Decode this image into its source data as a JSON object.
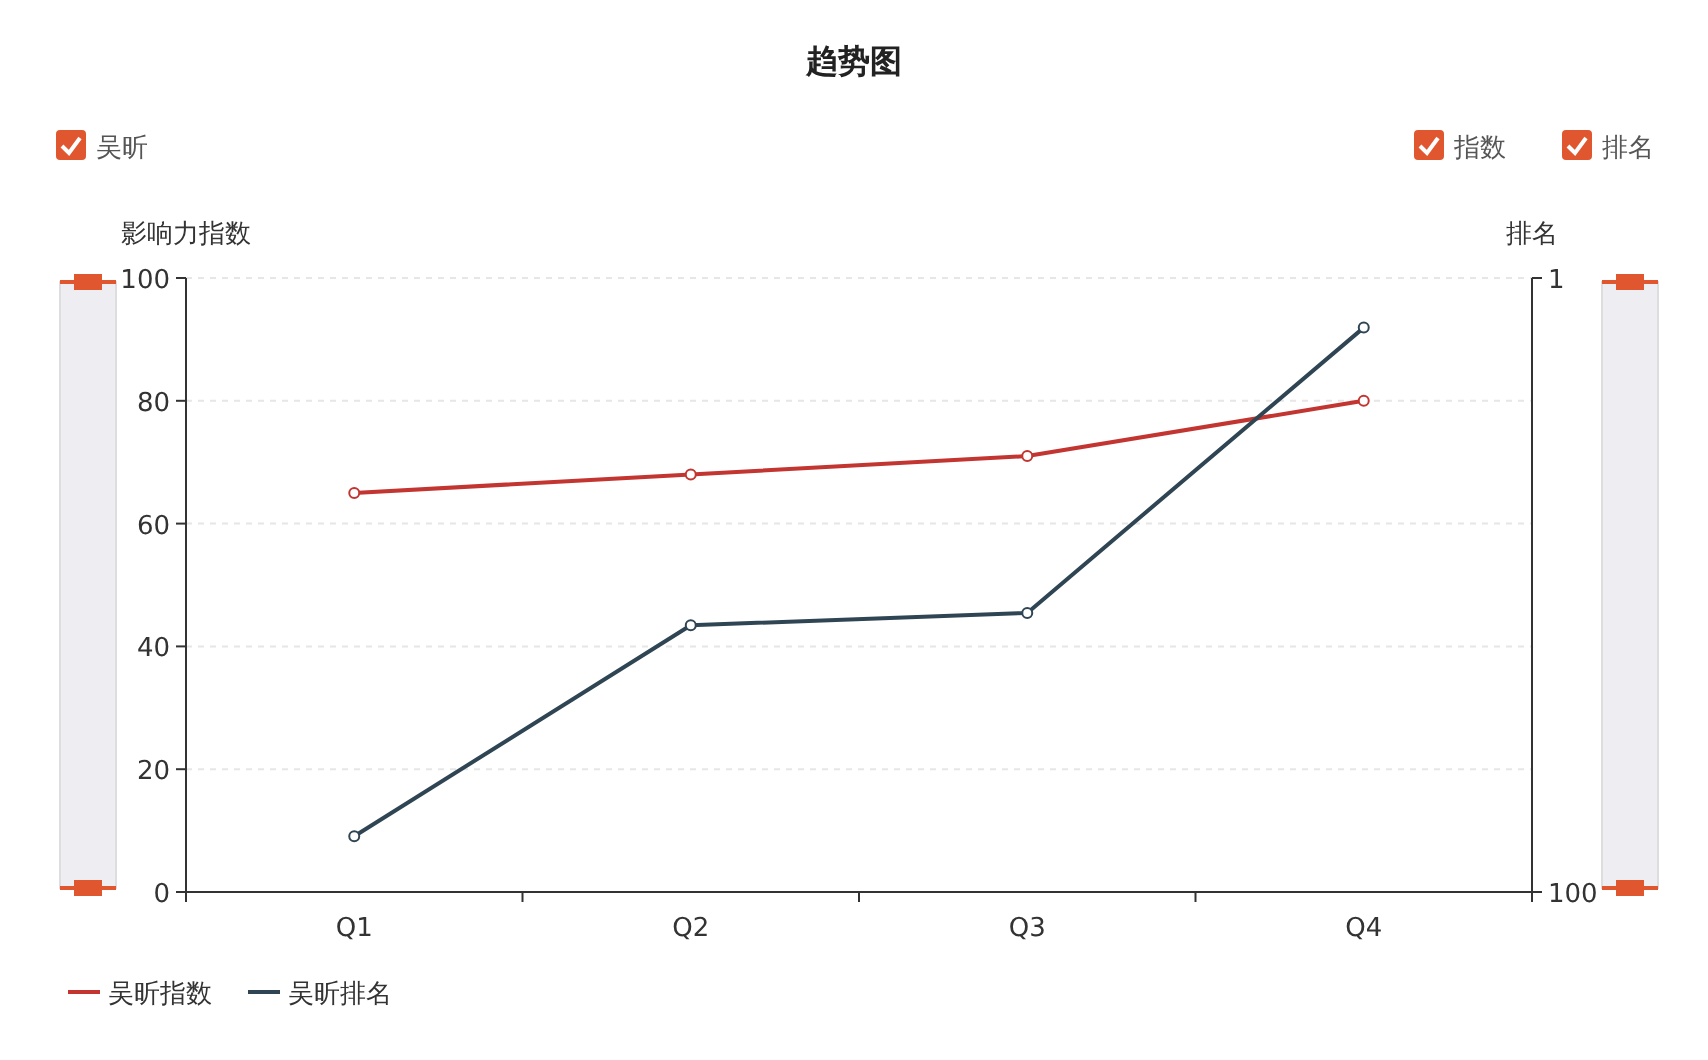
{
  "chart_data": {
    "type": "line",
    "title": "趋势图",
    "ylabel": "影响力指数",
    "y2label": "排名",
    "categories": [
      "Q1",
      "Q2",
      "Q3",
      "Q4"
    ],
    "series": [
      {
        "name": "吴昕指数",
        "color": "#c23531",
        "values": [
          65,
          68,
          71,
          80
        ]
      },
      {
        "name": "吴昕排名",
        "color": "#2f4554",
        "values": [
          91,
          57,
          55,
          9
        ],
        "axis": "y2"
      }
    ],
    "ylim": [
      0,
      100
    ],
    "yticks": [
      0,
      20,
      40,
      60,
      80,
      100
    ],
    "y2lim": [
      100,
      1
    ],
    "y2ticks": [
      1,
      100
    ],
    "grid": "y",
    "legend": "bottom left",
    "marker": "circle",
    "line_style": "solid",
    "annotations": [
      "吴昕",
      "指数",
      "排名"
    ]
  }
}
